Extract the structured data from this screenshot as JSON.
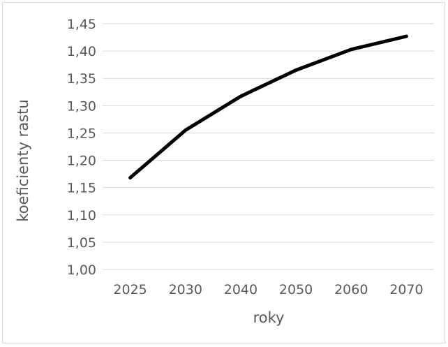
{
  "chart_data": {
    "type": "line",
    "categories": [
      "2025",
      "2030",
      "2040",
      "2050",
      "2060",
      "2070"
    ],
    "series": [
      {
        "values": [
          1.168,
          1.255,
          1.317,
          1.365,
          1.403,
          1.427
        ]
      }
    ],
    "xlabel": "roky",
    "ylabel": "koeficienty rastu",
    "ylim": [
      1.0,
      1.45
    ],
    "yticks": [
      "1,00",
      "1,05",
      "1,10",
      "1,15",
      "1,20",
      "1,25",
      "1,30",
      "1,35",
      "1,40",
      "1,45"
    ],
    "grid": true,
    "legend": "none",
    "colors": {
      "line": "#000000",
      "grid": "#d9d9d9",
      "text": "#595959"
    }
  }
}
